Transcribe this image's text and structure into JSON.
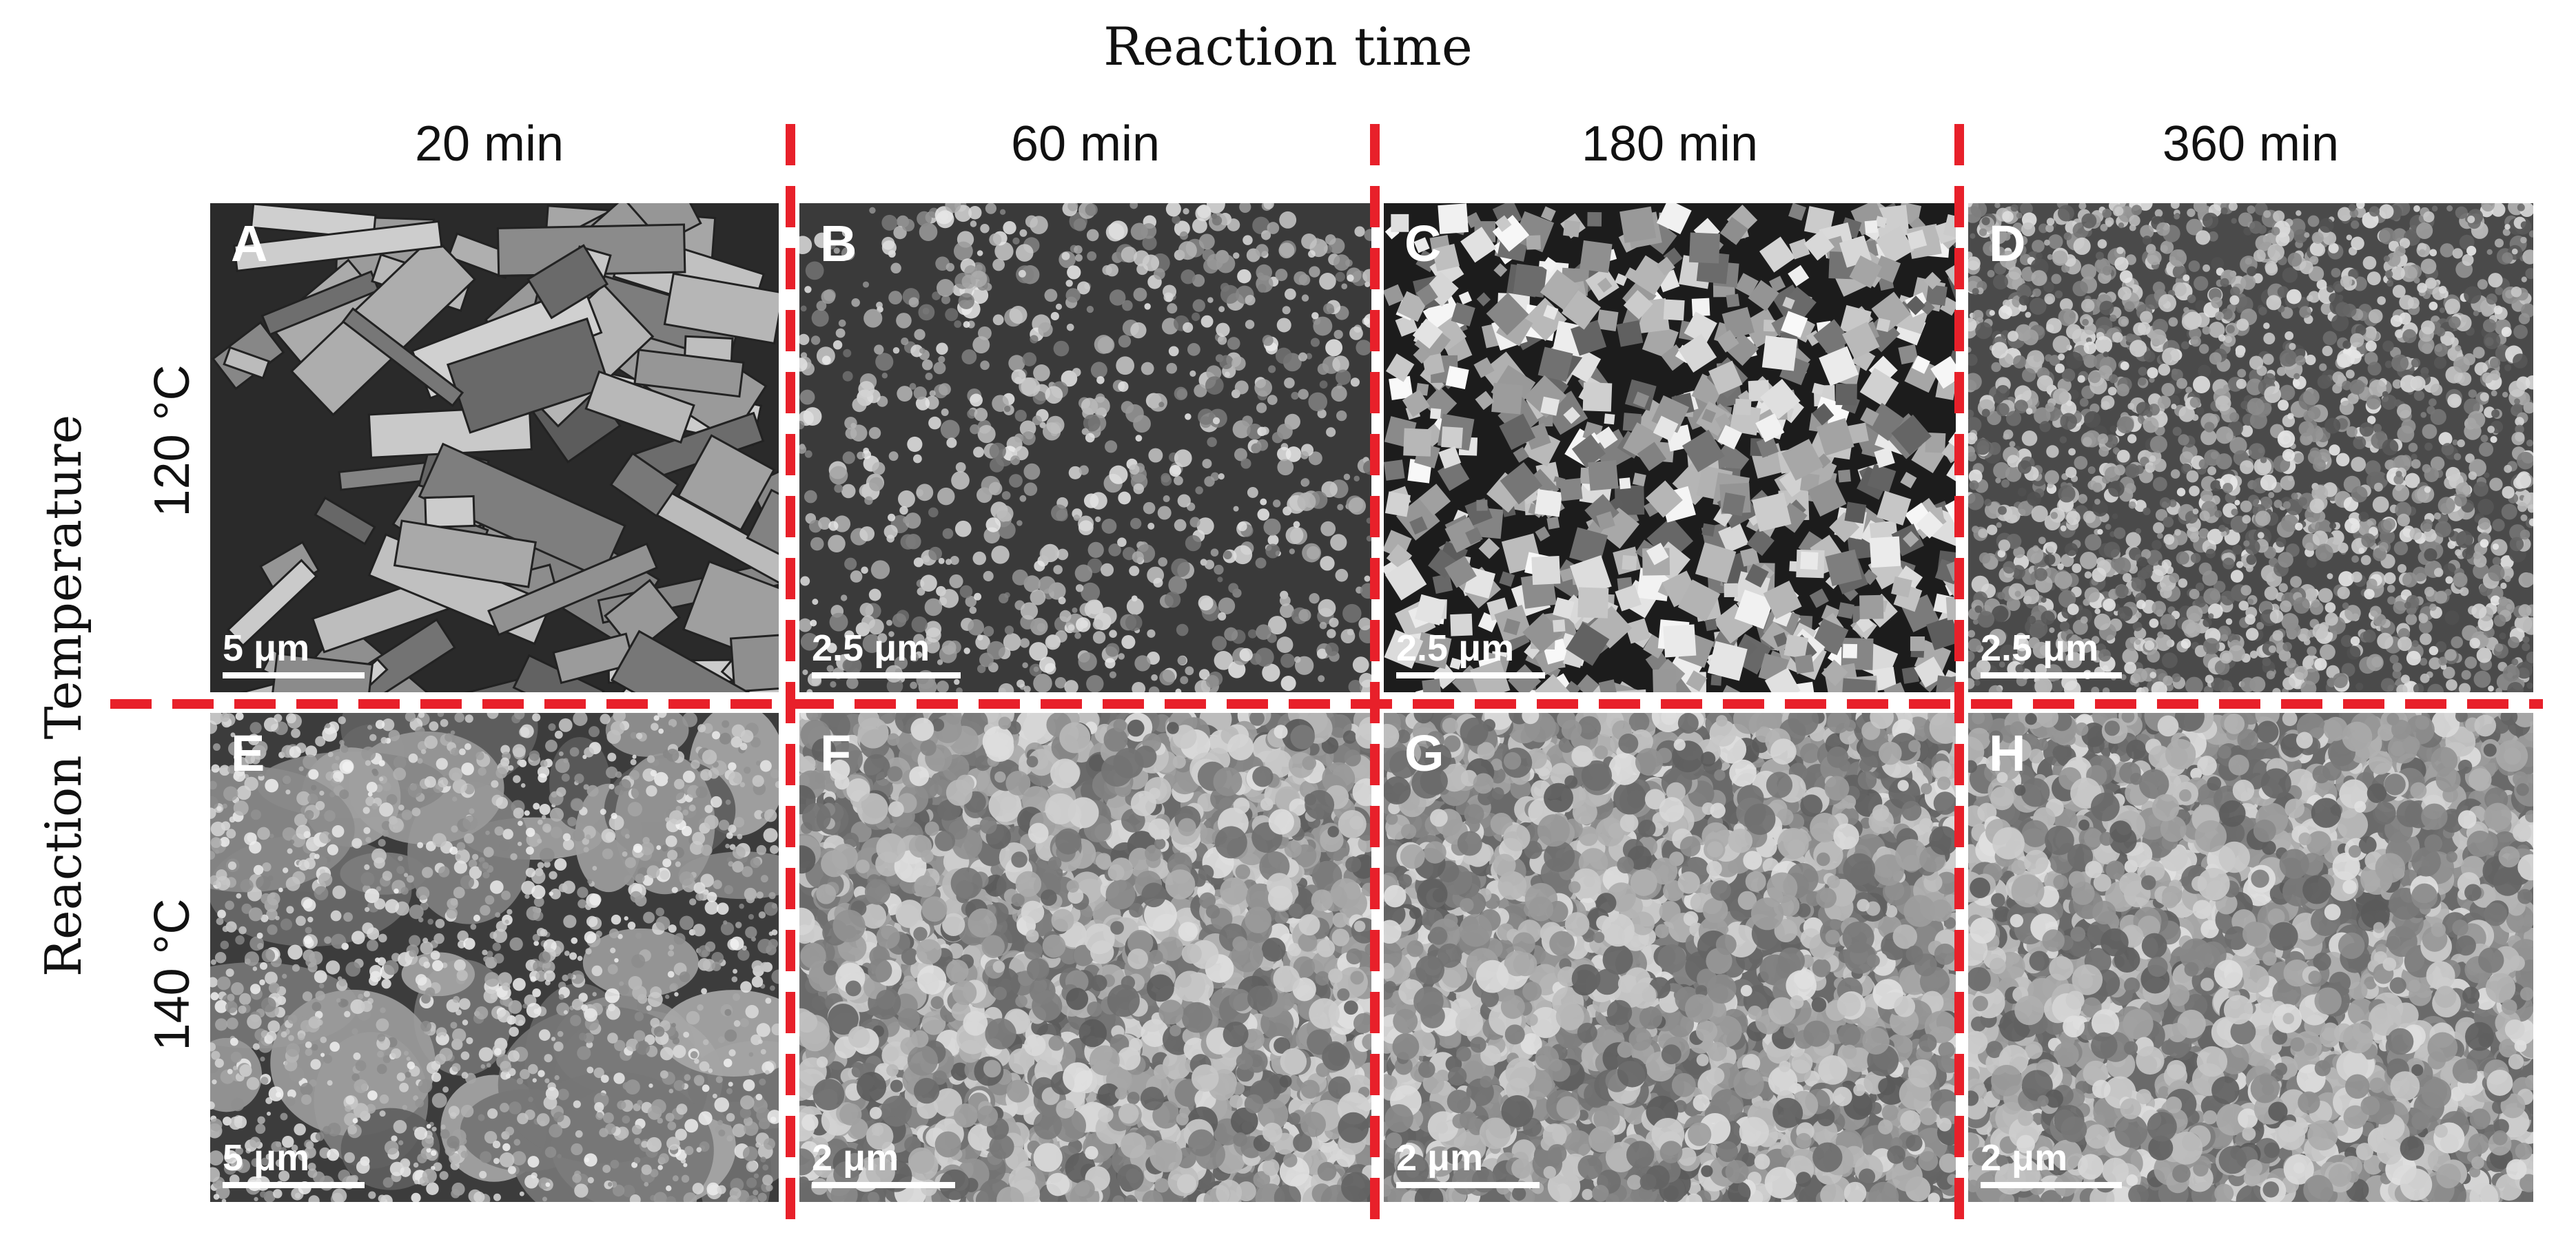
{
  "figure": {
    "title": "Reaction time",
    "y_axis_label": "Reaction Temperature",
    "columns": [
      "20 min",
      "60 min",
      "180 min",
      "360 min"
    ],
    "rows": [
      "120 °C",
      "140 °C"
    ],
    "panels": [
      {
        "letter": "A",
        "scale": "5 μm",
        "bar_fraction": 0.25,
        "texture": "blocky"
      },
      {
        "letter": "B",
        "scale": "2.5 μm",
        "bar_fraction": 0.26,
        "texture": "sparse"
      },
      {
        "letter": "C",
        "scale": "2.5 μm",
        "bar_fraction": 0.26,
        "texture": "cubes"
      },
      {
        "letter": "D",
        "scale": "2.5 μm",
        "bar_fraction": 0.25,
        "texture": "fine"
      },
      {
        "letter": "E",
        "scale": "5 μm",
        "bar_fraction": 0.25,
        "texture": "aggregate"
      },
      {
        "letter": "F",
        "scale": "2 μm",
        "bar_fraction": 0.25,
        "texture": "dense"
      },
      {
        "letter": "G",
        "scale": "2 μm",
        "bar_fraction": 0.25,
        "texture": "dense"
      },
      {
        "letter": "H",
        "scale": "2 μm",
        "bar_fraction": 0.25,
        "texture": "dense"
      }
    ],
    "divider_color": "#e8202a"
  }
}
